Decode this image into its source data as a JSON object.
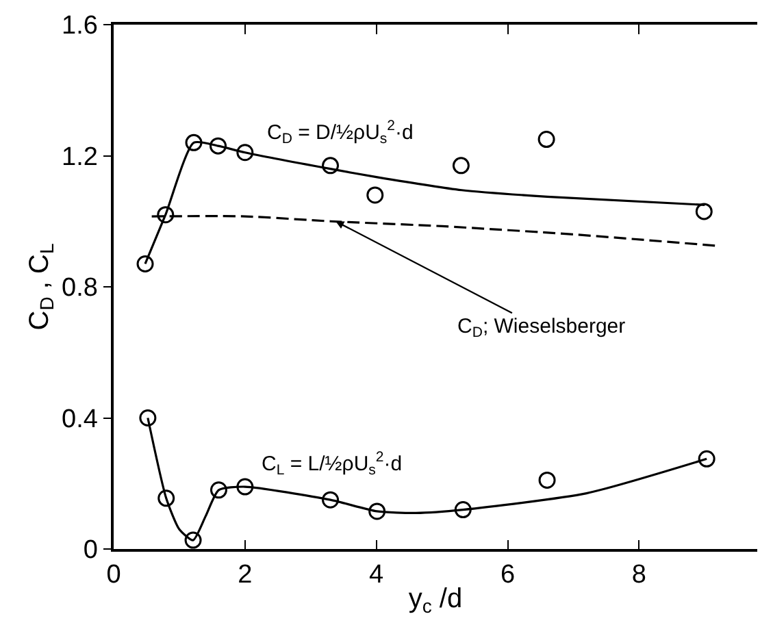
{
  "chart_data": {
    "type": "scatter",
    "xlabel": "y$_{c}$ /d",
    "ylabel": "C$_{D}$ , C$_{L}$",
    "xlim": [
      0,
      9.8
    ],
    "ylim": [
      0,
      1.6
    ],
    "xticks": [
      0,
      2,
      4,
      6,
      8
    ],
    "yticks": [
      0,
      0.4,
      0.8,
      1.2,
      1.6
    ],
    "legend": false,
    "series": [
      {
        "type": "line",
        "color": "#000000",
        "line_style": "solid",
        "x": [
          0.48,
          0.79,
          1.22,
          1.59,
          2.0,
          3.3,
          4.0,
          5.3,
          6.6,
          9.0
        ],
        "values": [
          0.87,
          1.02,
          1.24,
          1.23,
          1.21,
          1.16,
          1.135,
          1.095,
          1.075,
          1.05
        ]
      },
      {
        "type": "line",
        "color": "#000000",
        "line_style": "dashed",
        "x": [
          0.58,
          2.0,
          3.3,
          5.0,
          7.0,
          9.2
        ],
        "values": [
          1.015,
          1.015,
          1.0,
          0.985,
          0.96,
          0.925
        ]
      },
      {
        "type": "line",
        "color": "#000000",
        "line_style": "solid",
        "x": [
          0.52,
          0.8,
          1.0,
          1.21,
          1.4,
          1.6,
          2.0,
          3.3,
          4.01,
          4.6,
          5.32,
          7.2,
          9.03
        ],
        "values": [
          0.4,
          0.155,
          0.06,
          0.027,
          0.1,
          0.18,
          0.19,
          0.15,
          0.115,
          0.11,
          0.12,
          0.17,
          0.275
        ]
      },
      {
        "color": "#000000",
        "marker": "circle",
        "x": [
          0.48,
          0.79,
          1.22,
          1.59,
          2.0,
          3.3,
          3.98,
          5.29,
          6.59,
          8.99
        ],
        "values": [
          0.87,
          1.02,
          1.24,
          1.23,
          1.21,
          1.17,
          1.08,
          1.17,
          1.25,
          1.03
        ]
      },
      {
        "color": "#000000",
        "marker": "circle",
        "x": [
          0.52,
          0.8,
          1.21,
          1.6,
          2.0,
          3.3,
          4.01,
          5.32,
          6.6,
          9.03
        ],
        "values": [
          0.4,
          0.155,
          0.027,
          0.18,
          0.19,
          0.15,
          0.115,
          0.12,
          0.21,
          0.275
        ]
      }
    ],
    "annotations": [
      "C$_{D}$ = D/½ρU$_{s}$$^{2}$·d",
      {
        "text": "C$_{D}$; Wieselsberger",
        "x": 3.38,
        "y": 1.0
      },
      "C$_{L}$ = L/½ρU$_{s}$$^{2}$·d"
    ]
  }
}
